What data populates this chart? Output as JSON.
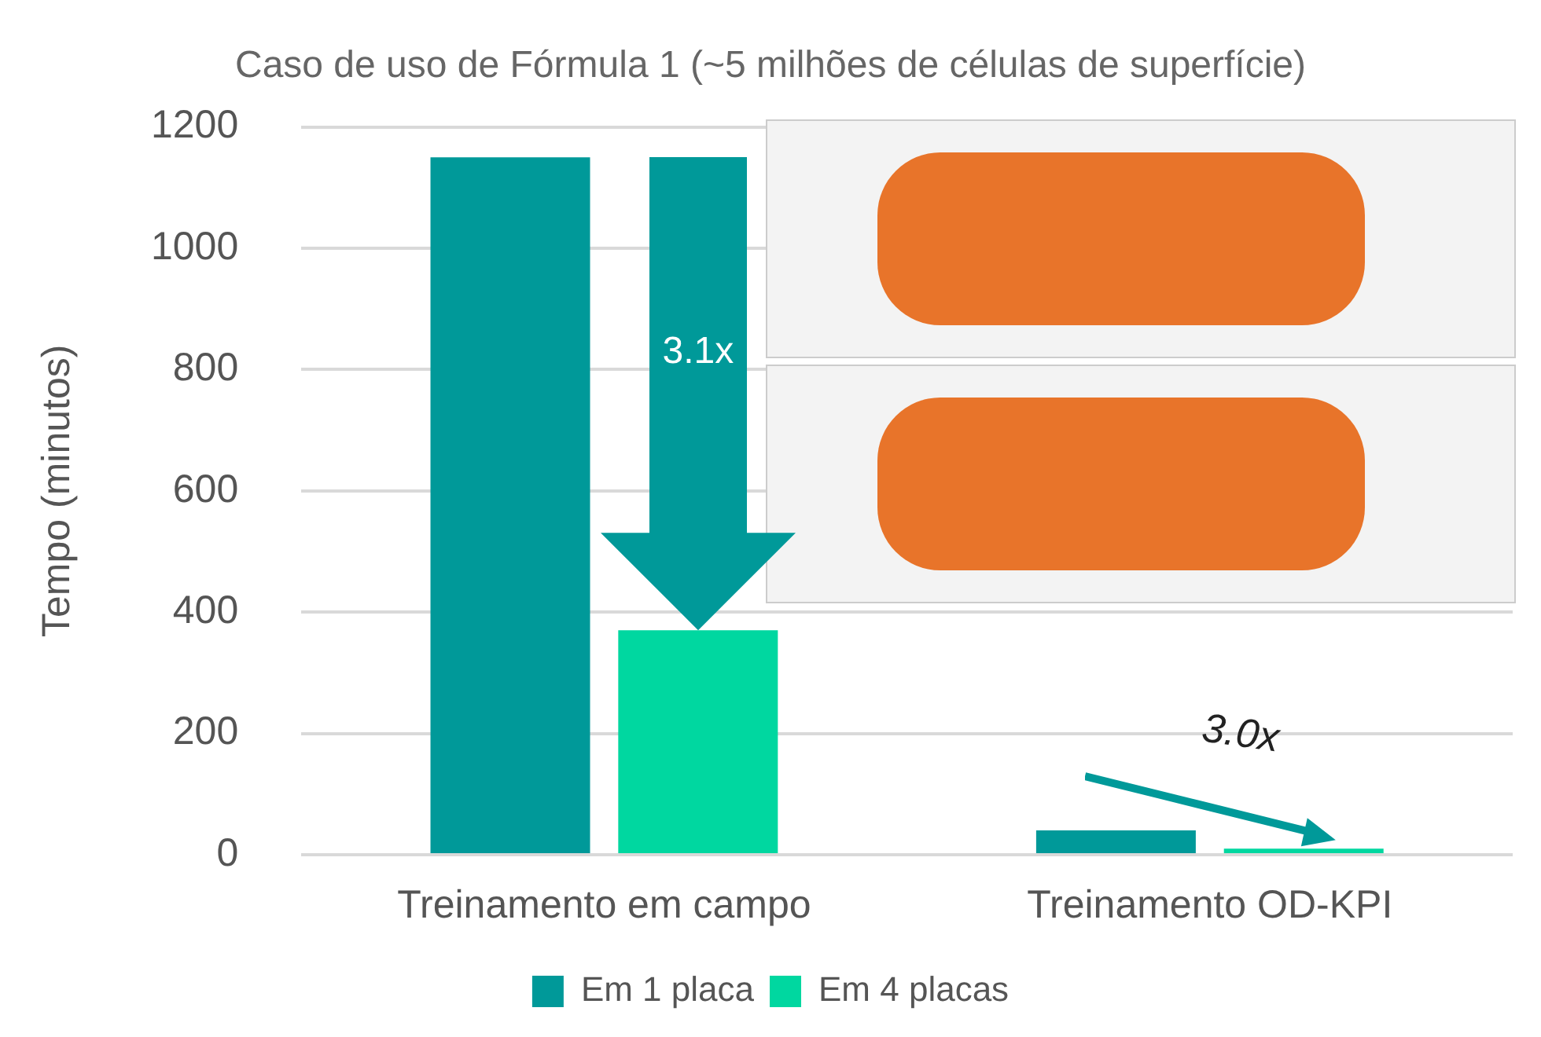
{
  "chart_data": {
    "type": "bar",
    "title": "Caso de uso de Fórmula 1 (~5 milhões de células de superfície)",
    "ylabel": "Tempo (minutos)",
    "categories": [
      "Treinamento em campo",
      "Treinamento OD-KPI"
    ],
    "series": [
      {
        "name": "Em 1 placa",
        "color": "#009999",
        "values": [
          1150,
          40
        ]
      },
      {
        "name": "Em 4 placas",
        "color": "#00d7a0",
        "values": [
          370,
          10
        ]
      }
    ],
    "ylim": [
      0,
      1200
    ],
    "yticks": [
      0,
      200,
      400,
      600,
      800,
      1000,
      1200
    ],
    "grid": "y",
    "legend": "bottom",
    "annotations": [
      "3.1x",
      "3.0x"
    ]
  }
}
